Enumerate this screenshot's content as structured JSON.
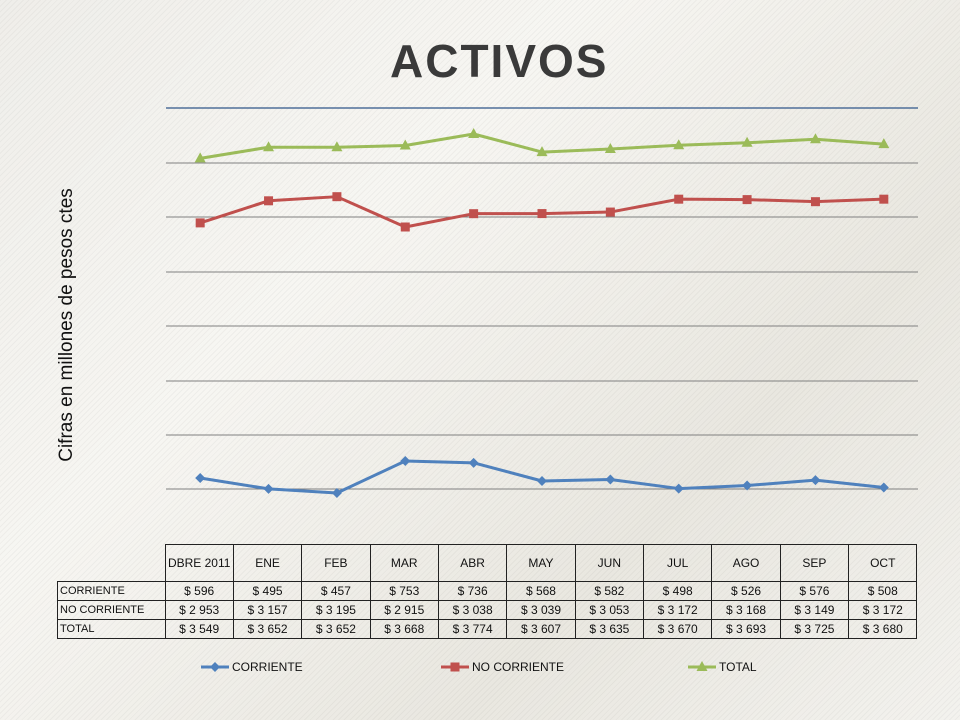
{
  "title": "ACTIVOS",
  "colors": {
    "corriente": "#4f81bd",
    "no_corriente": "#c0504d",
    "total": "#9bbb59",
    "grid": "#808080"
  },
  "chart_data": {
    "type": "line",
    "title": "ACTIVOS",
    "ylabel": "Cifras en millones de pesos ctes",
    "xlabel": "",
    "categories": [
      "DBRE 2011",
      "ENE",
      "FEB",
      "MAR",
      "ABR",
      "MAY",
      "JUN",
      "JUL",
      "AGO",
      "SEP",
      "OCT"
    ],
    "ylim": [
      0,
      4000
    ],
    "grid": true,
    "legend_position": "bottom",
    "series": [
      {
        "key": "corriente",
        "name": "CORRIENTE",
        "marker": "diamond",
        "values": [
          596,
          495,
          457,
          753,
          736,
          568,
          582,
          498,
          526,
          576,
          508
        ],
        "labels": [
          "$ 596",
          "$ 495",
          "$ 457",
          "$ 753",
          "$ 736",
          "$ 568",
          "$ 582",
          "$ 498",
          "$ 526",
          "$ 576",
          "$ 508"
        ]
      },
      {
        "key": "no_corriente",
        "name": "NO CORRIENTE",
        "marker": "square",
        "values": [
          2953,
          3157,
          3195,
          2915,
          3038,
          3039,
          3053,
          3172,
          3168,
          3149,
          3172
        ],
        "labels": [
          "$ 2 953",
          "$ 3 157",
          "$ 3 195",
          "$ 2 915",
          "$ 3 038",
          "$ 3 039",
          "$ 3 053",
          "$ 3 172",
          "$ 3 168",
          "$ 3 149",
          "$ 3 172"
        ]
      },
      {
        "key": "total",
        "name": "TOTAL",
        "marker": "triangle",
        "values": [
          3549,
          3652,
          3652,
          3668,
          3774,
          3607,
          3635,
          3670,
          3693,
          3725,
          3680
        ],
        "labels": [
          "$ 3 549",
          "$ 3 652",
          "$ 3 652",
          "$ 3 668",
          "$ 3 774",
          "$ 3 607",
          "$ 3 635",
          "$ 3 670",
          "$ 3 693",
          "$ 3 725",
          "$ 3 680"
        ]
      }
    ]
  }
}
